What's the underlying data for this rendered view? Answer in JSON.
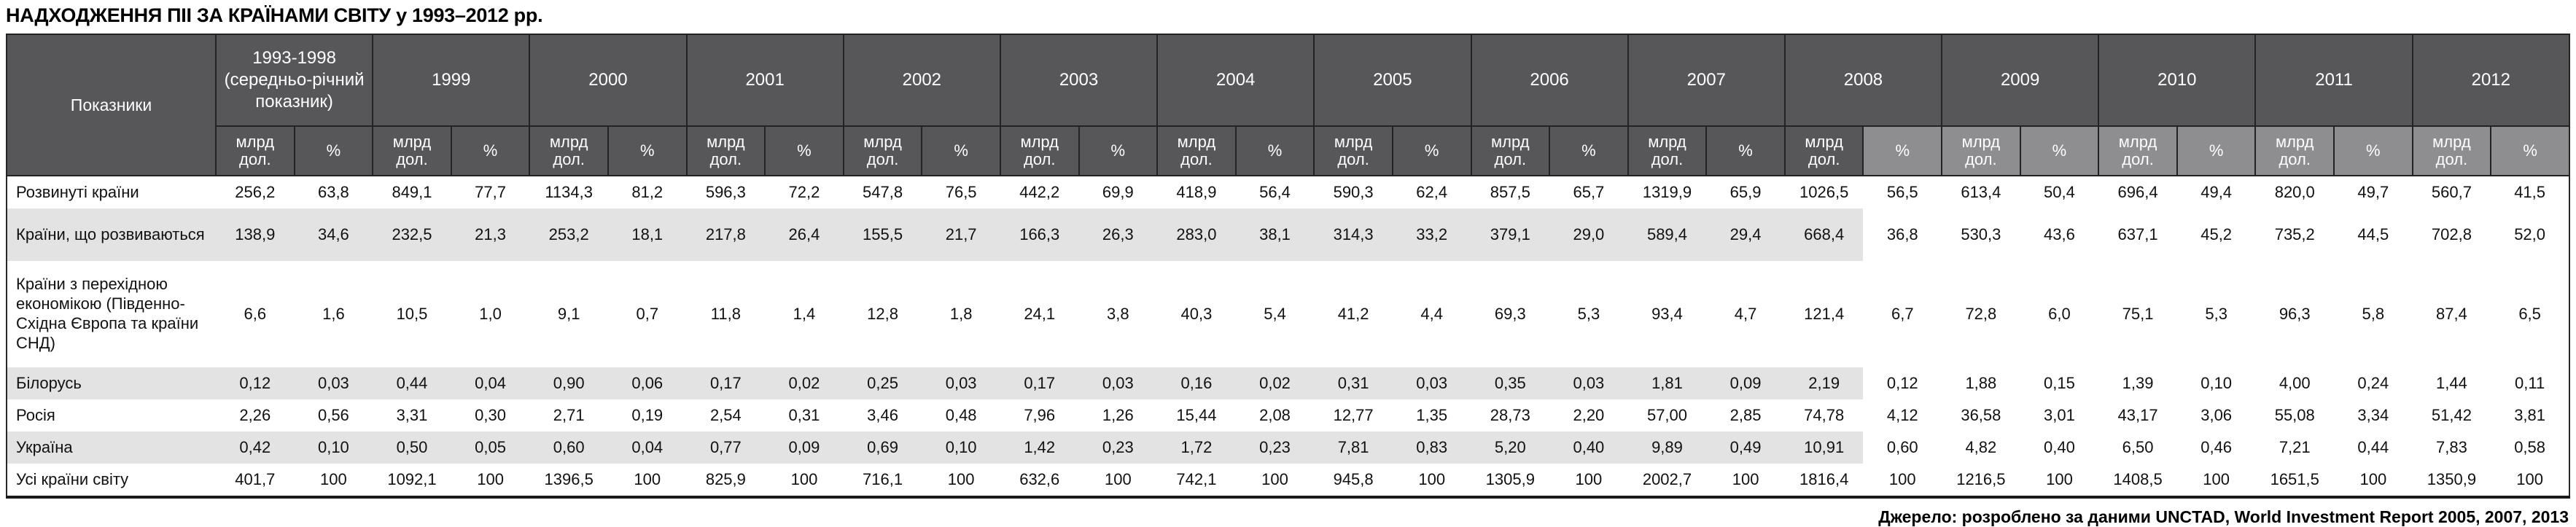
{
  "title": "НАДХОДЖЕННЯ ПІІ ЗА КРАЇНАМИ СВІТУ у 1993–2012 рр.",
  "source_note": "Джерело: розроблено за даними UNCTAD, World Investment Report 2005, 2007, 2013",
  "colors": {
    "header-bg": "#57575a",
    "header-bg-light": "#8e8e90",
    "row-stripe": "#e3e3e3",
    "border": "#28282a",
    "text": "#111111"
  },
  "table": {
    "indicator_header": "Показники",
    "unit_bln": "млрд дол.",
    "unit_pct": "%",
    "light_from_flat_col": 21,
    "stripe_last_flat_col": 20,
    "year_groups": [
      "1993-1998 (середньо-річний показник)",
      "1999",
      "2000",
      "2001",
      "2002",
      "2003",
      "2004",
      "2005",
      "2006",
      "2007",
      "2008",
      "2009",
      "2010",
      "2011",
      "2012"
    ],
    "rows": [
      {
        "label": "Розвинуті країни",
        "values": [
          "256,2",
          "63,8",
          "849,1",
          "77,7",
          "1134,3",
          "81,2",
          "596,3",
          "72,2",
          "547,8",
          "76,5",
          "442,2",
          "69,9",
          "418,9",
          "56,4",
          "590,3",
          "62,4",
          "857,5",
          "65,7",
          "1319,9",
          "65,9",
          "1026,5",
          "56,5",
          "613,4",
          "50,4",
          "696,4",
          "49,4",
          "820,0",
          "49,7",
          "560,7",
          "41,5"
        ]
      },
      {
        "label": "Країни, що розвиваються",
        "values": [
          "138,9",
          "34,6",
          "232,5",
          "21,3",
          "253,2",
          "18,1",
          "217,8",
          "26,4",
          "155,5",
          "21,7",
          "166,3",
          "26,3",
          "283,0",
          "38,1",
          "314,3",
          "33,2",
          "379,1",
          "29,0",
          "589,4",
          "29,4",
          "668,4",
          "36,8",
          "530,3",
          "43,6",
          "637,1",
          "45,2",
          "735,2",
          "44,5",
          "702,8",
          "52,0"
        ]
      },
      {
        "label": "Країни з перехідною економікою (Південно-Східна Європа та країни СНД)",
        "values": [
          "6,6",
          "1,6",
          "10,5",
          "1,0",
          "9,1",
          "0,7",
          "11,8",
          "1,4",
          "12,8",
          "1,8",
          "24,1",
          "3,8",
          "40,3",
          "5,4",
          "41,2",
          "4,4",
          "69,3",
          "5,3",
          "93,4",
          "4,7",
          "121,4",
          "6,7",
          "72,8",
          "6,0",
          "75,1",
          "5,3",
          "96,3",
          "5,8",
          "87,4",
          "6,5"
        ]
      },
      {
        "label": "Білорусь",
        "values": [
          "0,12",
          "0,03",
          "0,44",
          "0,04",
          "0,90",
          "0,06",
          "0,17",
          "0,02",
          "0,25",
          "0,03",
          "0,17",
          "0,03",
          "0,16",
          "0,02",
          "0,31",
          "0,03",
          "0,35",
          "0,03",
          "1,81",
          "0,09",
          "2,19",
          "0,12",
          "1,88",
          "0,15",
          "1,39",
          "0,10",
          "4,00",
          "0,24",
          "1,44",
          "0,11"
        ]
      },
      {
        "label": "Росія",
        "values": [
          "2,26",
          "0,56",
          "3,31",
          "0,30",
          "2,71",
          "0,19",
          "2,54",
          "0,31",
          "3,46",
          "0,48",
          "7,96",
          "1,26",
          "15,44",
          "2,08",
          "12,77",
          "1,35",
          "28,73",
          "2,20",
          "57,00",
          "2,85",
          "74,78",
          "4,12",
          "36,58",
          "3,01",
          "43,17",
          "3,06",
          "55,08",
          "3,34",
          "51,42",
          "3,81"
        ]
      },
      {
        "label": "Україна",
        "values": [
          "0,42",
          "0,10",
          "0,50",
          "0,05",
          "0,60",
          "0,04",
          "0,77",
          "0,09",
          "0,69",
          "0,10",
          "1,42",
          "0,23",
          "1,72",
          "0,23",
          "7,81",
          "0,83",
          "5,20",
          "0,40",
          "9,89",
          "0,49",
          "10,91",
          "0,60",
          "4,82",
          "0,40",
          "6,50",
          "0,46",
          "7,21",
          "0,44",
          "7,83",
          "0,58"
        ]
      },
      {
        "label": "Усі країни світу",
        "values": [
          "401,7",
          "100",
          "1092,1",
          "100",
          "1396,5",
          "100",
          "825,9",
          "100",
          "716,1",
          "100",
          "632,6",
          "100",
          "742,1",
          "100",
          "945,8",
          "100",
          "1305,9",
          "100",
          "2002,7",
          "100",
          "1816,4",
          "100",
          "1216,5",
          "100",
          "1408,5",
          "100",
          "1651,5",
          "100",
          "1350,9",
          "100"
        ]
      }
    ]
  }
}
